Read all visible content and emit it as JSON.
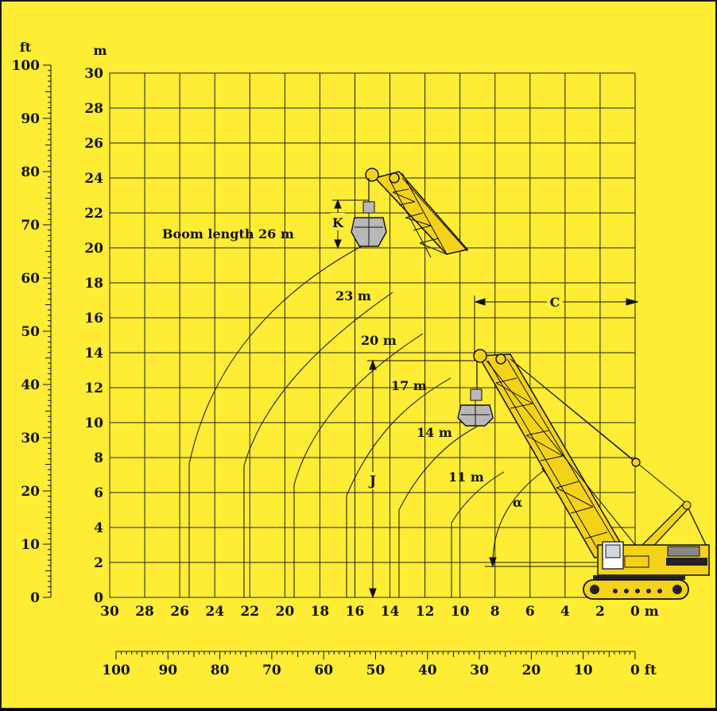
{
  "diagram": {
    "left_axis_unit": "ft",
    "left_axis_ticks": [
      "0",
      "10",
      "20",
      "30",
      "40",
      "50",
      "60",
      "70",
      "80",
      "90",
      "100"
    ],
    "main_y_unit": "m",
    "main_y_ticks": [
      "0",
      "2",
      "4",
      "6",
      "8",
      "10",
      "12",
      "14",
      "16",
      "18",
      "20",
      "22",
      "24",
      "26",
      "28",
      "30"
    ],
    "main_x_ticks": [
      "30",
      "28",
      "26",
      "24",
      "22",
      "20",
      "18",
      "16",
      "14",
      "12",
      "10",
      "8",
      "6",
      "4",
      "2",
      "0 m"
    ],
    "bottom_ft_ticks": [
      "100",
      "90",
      "80",
      "70",
      "60",
      "50",
      "40",
      "30",
      "20",
      "10",
      "0 ft"
    ],
    "boom_labels": [
      "Boom length 26 m",
      "23 m",
      "20 m",
      "17 m",
      "14 m",
      "11 m"
    ],
    "dimension_labels": {
      "k": "K",
      "j": "J",
      "c": "C",
      "alpha": "α"
    },
    "colors": {
      "background": "#ffec34",
      "ink": "#111111",
      "bucket": "#b8b8b8",
      "crane_yellow": "#f4d21a"
    }
  }
}
